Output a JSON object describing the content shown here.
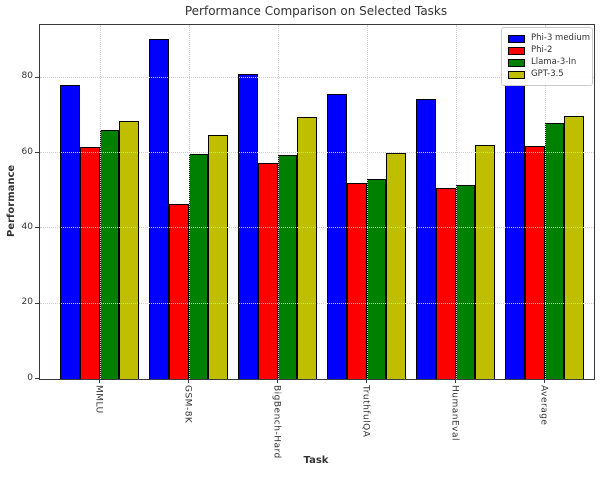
{
  "chart_data": {
    "type": "bar",
    "title": "Performance Comparison on Selected Tasks",
    "xlabel": "Task",
    "ylabel": "Performance",
    "categories": [
      "MMLU",
      "GSM-8K",
      "BigBench-Hard",
      "TruthfulQA",
      "HumanEval",
      "Average"
    ],
    "series": [
      {
        "name": "Phi-3 medium",
        "color": "#0000ff",
        "values": [
          78.0,
          90.3,
          81.0,
          75.7,
          74.4,
          78.2
        ]
      },
      {
        "name": "Phi-2",
        "color": "#ff0000",
        "values": [
          61.7,
          46.4,
          57.3,
          52.1,
          50.6,
          62.0
        ]
      },
      {
        "name": "Llama-3-In",
        "color": "#008000",
        "values": [
          66.0,
          59.8,
          59.4,
          53.0,
          51.5,
          68.0
        ]
      },
      {
        "name": "GPT-3.5",
        "color": "#bfbf00",
        "values": [
          68.4,
          64.7,
          69.7,
          60.1,
          62.2,
          69.9
        ]
      }
    ],
    "yticks": [
      0,
      20,
      40,
      60,
      80
    ],
    "ylim": [
      0,
      94
    ],
    "grid": true,
    "grid_style": "dotted",
    "legend_position": "upper right",
    "bar_edge_color": "#000000"
  }
}
